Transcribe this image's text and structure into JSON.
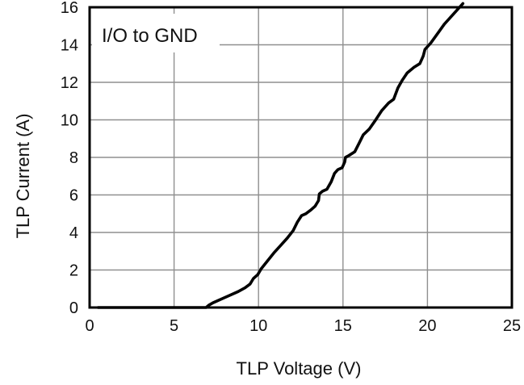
{
  "chart_data": {
    "type": "line",
    "title": "",
    "annotation": "I/O to GND",
    "xlabel": "TLP Voltage (V)",
    "ylabel": "TLP Current (A)",
    "xlim": [
      0,
      25
    ],
    "ylim": [
      0,
      16
    ],
    "grid": true,
    "x_ticks": [
      0,
      5,
      10,
      15,
      20,
      25
    ],
    "y_ticks": [
      0,
      2,
      4,
      6,
      8,
      10,
      12,
      14,
      16
    ],
    "series": [
      {
        "points": [
          [
            0.5,
            0.0
          ],
          [
            2.0,
            0.0
          ],
          [
            4.0,
            0.0
          ],
          [
            6.0,
            0.0
          ],
          [
            6.9,
            0.0
          ],
          [
            7.05,
            0.12
          ],
          [
            7.3,
            0.25
          ],
          [
            7.8,
            0.45
          ],
          [
            8.3,
            0.65
          ],
          [
            8.8,
            0.85
          ],
          [
            9.2,
            1.05
          ],
          [
            9.5,
            1.25
          ],
          [
            9.7,
            1.55
          ],
          [
            9.95,
            1.75
          ],
          [
            10.15,
            2.05
          ],
          [
            10.5,
            2.45
          ],
          [
            10.9,
            2.9
          ],
          [
            11.3,
            3.3
          ],
          [
            11.7,
            3.7
          ],
          [
            12.05,
            4.1
          ],
          [
            12.3,
            4.55
          ],
          [
            12.55,
            4.9
          ],
          [
            12.8,
            5.0
          ],
          [
            13.1,
            5.2
          ],
          [
            13.35,
            5.4
          ],
          [
            13.55,
            5.7
          ],
          [
            13.6,
            6.05
          ],
          [
            13.8,
            6.2
          ],
          [
            14.05,
            6.3
          ],
          [
            14.3,
            6.7
          ],
          [
            14.5,
            7.15
          ],
          [
            14.7,
            7.35
          ],
          [
            14.95,
            7.45
          ],
          [
            15.1,
            7.75
          ],
          [
            15.15,
            8.0
          ],
          [
            15.35,
            8.1
          ],
          [
            15.7,
            8.3
          ],
          [
            15.95,
            8.75
          ],
          [
            16.2,
            9.2
          ],
          [
            16.55,
            9.5
          ],
          [
            16.9,
            9.95
          ],
          [
            17.3,
            10.5
          ],
          [
            17.7,
            10.9
          ],
          [
            18.0,
            11.1
          ],
          [
            18.25,
            11.7
          ],
          [
            18.5,
            12.1
          ],
          [
            18.8,
            12.5
          ],
          [
            19.2,
            12.8
          ],
          [
            19.55,
            13.0
          ],
          [
            19.75,
            13.4
          ],
          [
            19.85,
            13.75
          ],
          [
            20.2,
            14.1
          ],
          [
            20.6,
            14.6
          ],
          [
            21.0,
            15.1
          ],
          [
            21.5,
            15.6
          ],
          [
            22.1,
            16.2
          ]
        ]
      }
    ]
  }
}
